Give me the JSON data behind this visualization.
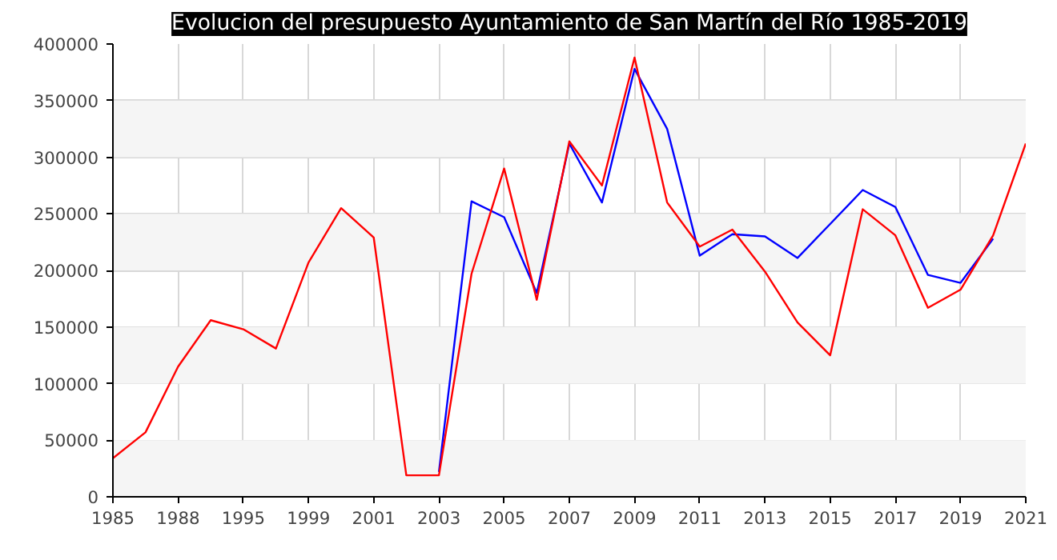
{
  "chart_data": {
    "type": "line",
    "title": "Evolucion del presupuesto Ayuntamiento de San Martín del Río 1985-2019",
    "categories": [
      "1985",
      null,
      "1988",
      null,
      "1995",
      null,
      "1999",
      null,
      "2001",
      null,
      "2003",
      null,
      "2005",
      null,
      "2007",
      null,
      "2009",
      null,
      "2011",
      null,
      "2013",
      null,
      "2015",
      null,
      "2017",
      null,
      "2019",
      null,
      "2021"
    ],
    "series": [
      {
        "color": "#0000ff",
        "values": [
          null,
          null,
          null,
          null,
          null,
          null,
          null,
          null,
          null,
          null,
          22000,
          261000,
          247000,
          180000,
          312000,
          260000,
          378000,
          325000,
          213000,
          232000,
          230000,
          211000,
          241000,
          271000,
          256000,
          196000,
          189000,
          228000,
          null
        ]
      },
      {
        "color": "#ff0000",
        "values": [
          34000,
          57000,
          115000,
          156000,
          148000,
          131000,
          207000,
          255000,
          229000,
          19000,
          19000,
          197000,
          290000,
          174000,
          314000,
          275000,
          388000,
          260000,
          221000,
          236000,
          199000,
          154000,
          125000,
          254000,
          231000,
          167000,
          183000,
          231000,
          312000
        ]
      }
    ],
    "ylim": [
      0,
      400000
    ],
    "yticks": [
      0,
      50000,
      100000,
      150000,
      200000,
      250000,
      300000,
      350000,
      400000
    ],
    "grid": true,
    "bands": [
      {
        "axis": "y",
        "from": 0,
        "to": 50000,
        "color": "#f5f5f5"
      },
      {
        "axis": "y",
        "from": 100000,
        "to": 150000,
        "color": "#f5f5f5"
      },
      {
        "axis": "y",
        "from": 200000,
        "to": 250000,
        "color": "#f5f5f5"
      },
      {
        "axis": "y",
        "from": 300000,
        "to": 350000,
        "color": "#f5f5f5"
      }
    ]
  }
}
